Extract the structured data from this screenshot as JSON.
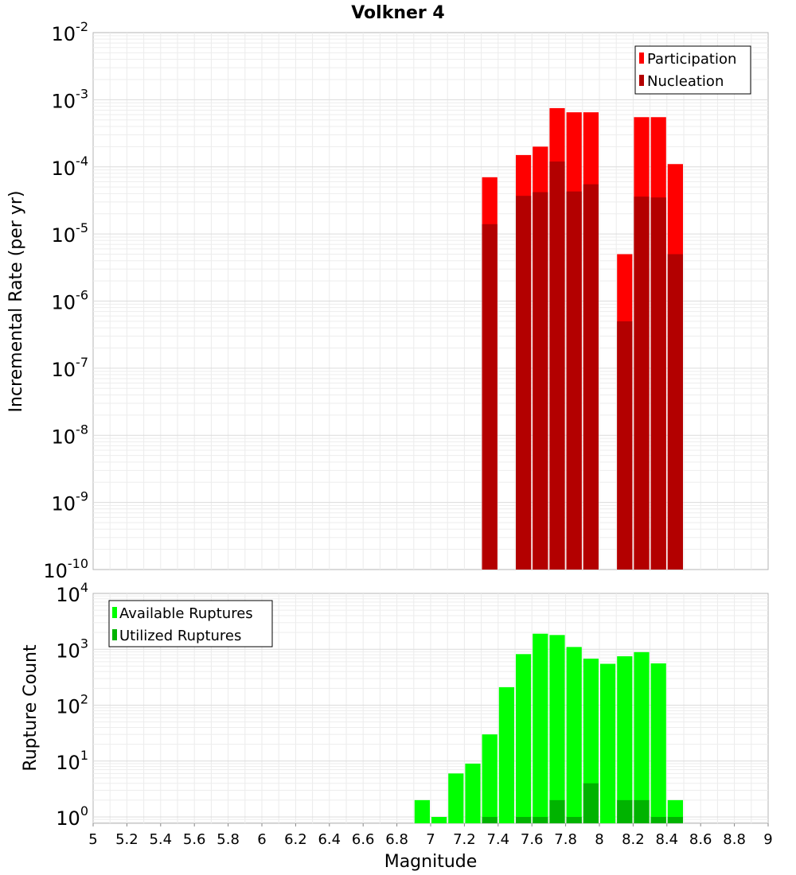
{
  "chart_data": [
    {
      "type": "bar",
      "title": "Volkner 4",
      "ylabel": "Incremental Rate (per yr)",
      "xlabel": "",
      "y_scale": "log",
      "ylim": [
        1e-10,
        0.01
      ],
      "xlim": [
        5,
        9
      ],
      "grid": true,
      "legend_position": "top-right",
      "bar_width": 0.1,
      "y_ticks": [
        {
          "mant": "10",
          "exp": "-10",
          "value": 1e-10
        },
        {
          "mant": "10",
          "exp": "-9",
          "value": 1e-09
        },
        {
          "mant": "10",
          "exp": "-8",
          "value": 1e-08
        },
        {
          "mant": "10",
          "exp": "-7",
          "value": 1e-07
        },
        {
          "mant": "10",
          "exp": "-6",
          "value": 1e-06
        },
        {
          "mant": "10",
          "exp": "-5",
          "value": 1e-05
        },
        {
          "mant": "10",
          "exp": "-4",
          "value": 0.0001
        },
        {
          "mant": "10",
          "exp": "-3",
          "value": 0.001
        },
        {
          "mant": "10",
          "exp": "-2",
          "value": 0.01
        }
      ],
      "x": [
        7.35,
        7.55,
        7.65,
        7.75,
        7.85,
        7.95,
        8.15,
        8.25,
        8.35,
        8.45
      ],
      "series": [
        {
          "name": "Participation",
          "color": "#ff0000",
          "values": [
            7e-05,
            0.00015,
            0.0002,
            0.00075,
            0.00065,
            0.00065,
            5e-06,
            0.00055,
            0.00055,
            0.00011
          ]
        },
        {
          "name": "Nucleation",
          "color": "#b30000",
          "values": [
            1.4e-05,
            3.7e-05,
            4.2e-05,
            0.00012,
            4.3e-05,
            5.5e-05,
            5e-07,
            3.6e-05,
            3.5e-05,
            5e-06
          ]
        }
      ]
    },
    {
      "type": "bar",
      "title": "",
      "ylabel": "Rupture Count",
      "xlabel": "Magnitude",
      "y_scale": "log",
      "ylim": [
        0.77,
        10000
      ],
      "xlim": [
        5,
        9
      ],
      "grid": true,
      "legend_position": "top-left",
      "bar_width": 0.1,
      "y_ticks": [
        {
          "mant": "10",
          "exp": "0",
          "value": 1
        },
        {
          "mant": "10",
          "exp": "1",
          "value": 10
        },
        {
          "mant": "10",
          "exp": "2",
          "value": 100
        },
        {
          "mant": "10",
          "exp": "3",
          "value": 1000
        },
        {
          "mant": "10",
          "exp": "4",
          "value": 10000
        }
      ],
      "x_ticks": [
        "5",
        "5.2",
        "5.4",
        "5.6",
        "5.8",
        "6",
        "6.2",
        "6.4",
        "6.6",
        "6.8",
        "7",
        "7.2",
        "7.4",
        "7.6",
        "7.8",
        "8",
        "8.2",
        "8.4",
        "8.6",
        "8.8",
        "9"
      ],
      "x": [
        6.95,
        7.05,
        7.15,
        7.25,
        7.35,
        7.45,
        7.55,
        7.65,
        7.75,
        7.85,
        7.95,
        8.05,
        8.15,
        8.25,
        8.35,
        8.45
      ],
      "series": [
        {
          "name": "Available Ruptures",
          "color": "#00ff00",
          "values": [
            2,
            1,
            6,
            9,
            30,
            210,
            820,
            1900,
            1800,
            1100,
            680,
            550,
            750,
            890,
            560,
            2
          ]
        },
        {
          "name": "Utilized Ruptures",
          "color": "#00b300",
          "values": [
            0,
            0,
            0,
            0,
            1,
            0,
            1,
            1,
            2,
            1,
            4,
            0,
            2,
            2,
            1,
            1
          ]
        }
      ]
    }
  ]
}
